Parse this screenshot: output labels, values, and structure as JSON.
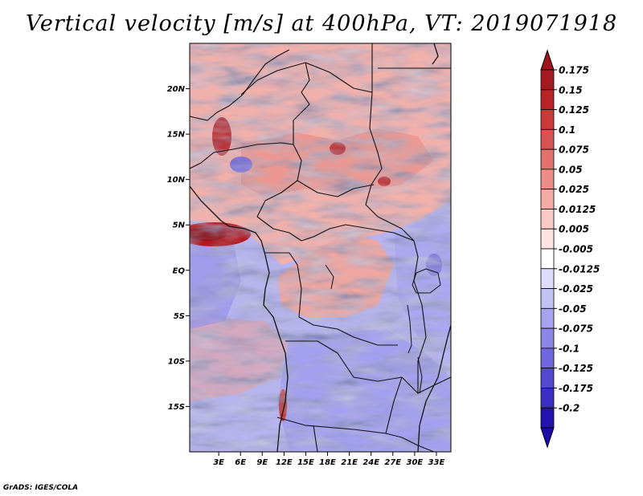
{
  "title": "Vertical velocity [m/s] at 400hPa, VT: 2019071918",
  "credit": "GrADS: IGES/COLA",
  "map": {
    "lon_range": [
      -1,
      35
    ],
    "lat_range": [
      -20,
      25
    ],
    "lat_ticks": [
      {
        "value": 20,
        "label": "20N"
      },
      {
        "value": 15,
        "label": "15N"
      },
      {
        "value": 10,
        "label": "10N"
      },
      {
        "value": 5,
        "label": "5N"
      },
      {
        "value": 0,
        "label": "EQ"
      },
      {
        "value": -5,
        "label": "5S"
      },
      {
        "value": -10,
        "label": "10S"
      },
      {
        "value": -15,
        "label": "15S"
      }
    ],
    "lon_ticks": [
      {
        "value": 3,
        "label": "3E"
      },
      {
        "value": 6,
        "label": "6E"
      },
      {
        "value": 9,
        "label": "9E"
      },
      {
        "value": 12,
        "label": "12E"
      },
      {
        "value": 15,
        "label": "15E"
      },
      {
        "value": 18,
        "label": "18E"
      },
      {
        "value": 21,
        "label": "21E"
      },
      {
        "value": 24,
        "label": "24E"
      },
      {
        "value": 27,
        "label": "27E"
      },
      {
        "value": 30,
        "label": "30E"
      },
      {
        "value": 33,
        "label": "33E"
      }
    ]
  },
  "colorbar": {
    "levels": [
      {
        "label": "0.175",
        "color": "#a51a1e"
      },
      {
        "label": "0.15",
        "color": "#b92326"
      },
      {
        "label": "0.125",
        "color": "#cb3a37"
      },
      {
        "label": "0.1",
        "color": "#d85450"
      },
      {
        "label": "0.075",
        "color": "#e2716b"
      },
      {
        "label": "0.05",
        "color": "#ec8e88"
      },
      {
        "label": "0.025",
        "color": "#f3aba6"
      },
      {
        "label": "0.0125",
        "color": "#f9c9c6"
      },
      {
        "label": "0.005",
        "color": "#fde4e2"
      },
      {
        "label": "-0.005",
        "color": "#ffffff"
      },
      {
        "label": "-0.0125",
        "color": "#dedcfa"
      },
      {
        "label": "-0.025",
        "color": "#c3c0f4"
      },
      {
        "label": "-0.05",
        "color": "#a7a3ee"
      },
      {
        "label": "-0.075",
        "color": "#8b85e6"
      },
      {
        "label": "-0.1",
        "color": "#6f67dd"
      },
      {
        "label": "-0.125",
        "color": "#5449d1"
      },
      {
        "label": "-0.175",
        "color": "#3a2ec3"
      },
      {
        "label": "-0.2",
        "color": "#2612b0"
      }
    ],
    "top_color": "#a0141c",
    "bottom_color": "#1e0aa8"
  }
}
